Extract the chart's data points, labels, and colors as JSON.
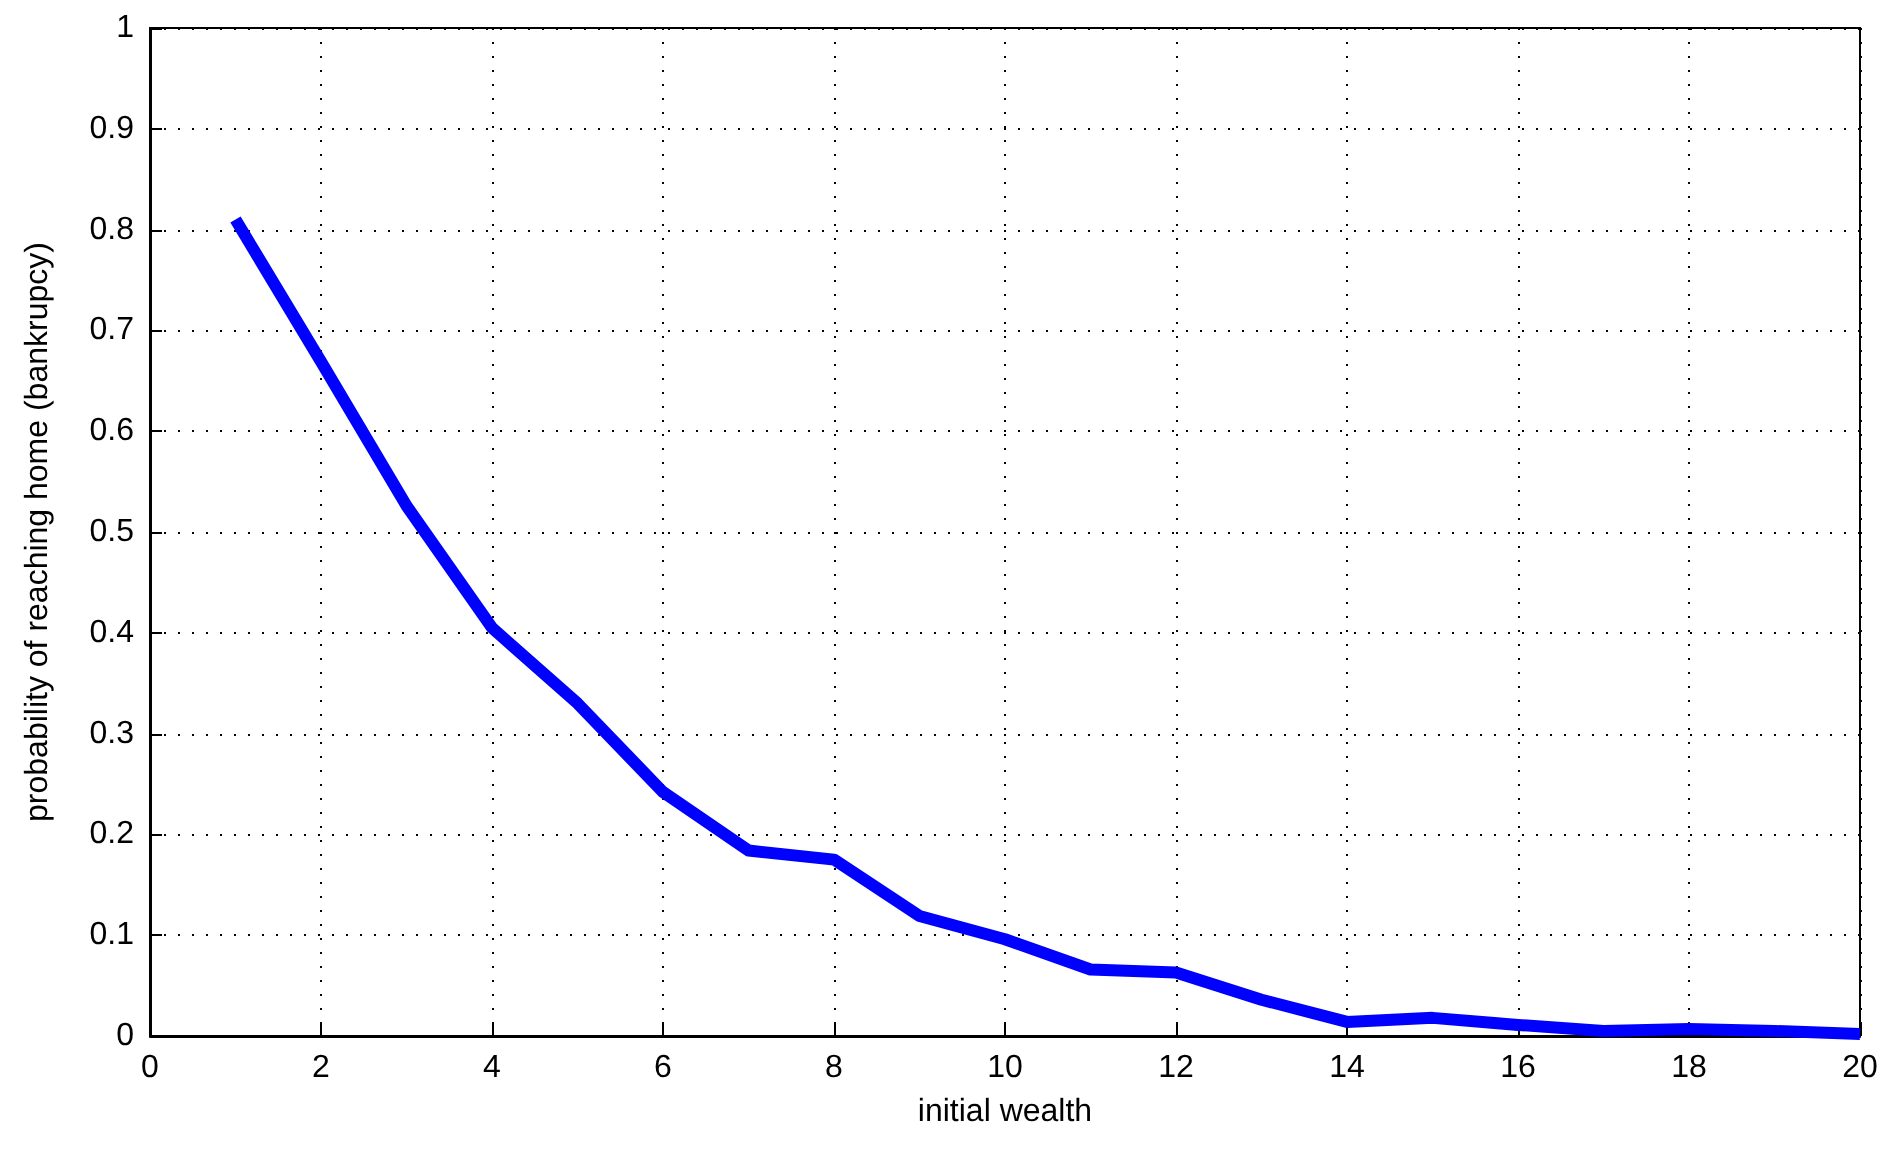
{
  "chart_data": {
    "type": "line",
    "xlabel": "initial wealth",
    "ylabel": "probability of reaching home (bankrupcy)",
    "x": [
      1,
      2,
      3,
      4,
      5,
      6,
      7,
      8,
      9,
      10,
      11,
      12,
      13,
      14,
      15,
      16,
      17,
      18,
      19,
      20
    ],
    "series": [
      {
        "color": "#0000ff",
        "values": [
          0.81,
          0.669,
          0.526,
          0.405,
          0.33,
          0.242,
          0.184,
          0.175,
          0.119,
          0.096,
          0.066,
          0.063,
          0.036,
          0.014,
          0.018,
          0.011,
          0.005,
          0.007,
          0.005,
          0.002
        ]
      }
    ],
    "xlim": [
      0,
      20
    ],
    "xticks": [
      0,
      2,
      4,
      6,
      8,
      10,
      12,
      14,
      16,
      18,
      20
    ],
    "ylim": [
      0,
      1
    ],
    "yticks": [
      0,
      0.1,
      0.2,
      0.3,
      0.4,
      0.5,
      0.6,
      0.7,
      0.8,
      0.9,
      1
    ],
    "grid": true,
    "marker": "none",
    "line_style": "solid"
  }
}
